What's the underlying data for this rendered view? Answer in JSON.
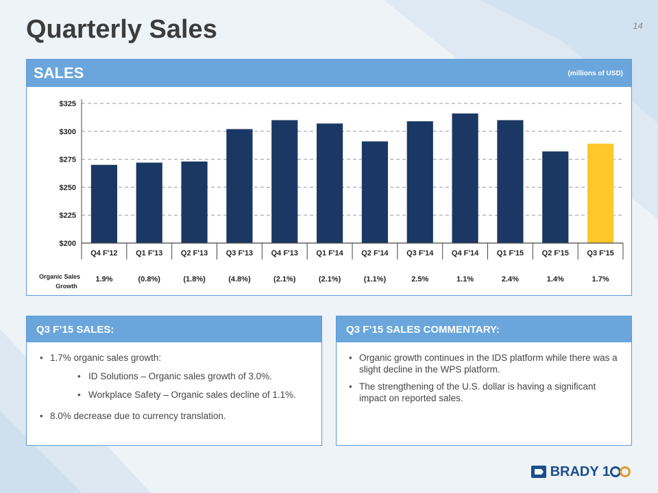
{
  "page": {
    "title": "Quarterly Sales",
    "number": "14"
  },
  "sales_panel": {
    "header": "SALES",
    "unit": "(millions of USD)"
  },
  "chart_data": {
    "type": "bar",
    "categories": [
      "Q4 F'12",
      "Q1 F'13",
      "Q2 F'13",
      "Q3 F'13",
      "Q4 F'13",
      "Q1 F'14",
      "Q2 F'14",
      "Q3 F'14",
      "Q4 F'14",
      "Q1 F'15",
      "Q2 F'15",
      "Q3 F'15"
    ],
    "values": [
      270,
      272,
      273,
      302,
      310,
      307,
      291,
      309,
      316,
      310,
      282,
      289
    ],
    "ylim": [
      200,
      325
    ],
    "yticks": [
      200,
      225,
      250,
      275,
      300,
      325
    ],
    "ytick_labels": [
      "$200",
      "$225",
      "$250",
      "$275",
      "$300",
      "$325"
    ],
    "grid": true,
    "bar_color": "#1b3864",
    "highlight_color": "#ffc72c",
    "highlight_index": 11,
    "growth_label": "Organic Sales Growth",
    "growth_values": [
      "1.9%",
      "(0.8%)",
      "(1.8%)",
      "(4.8%)",
      "(2.1%)",
      "(2.1%)",
      "(1.1%)",
      "2.5%",
      "1.1%",
      "2.4%",
      "1.4%",
      "1.7%"
    ]
  },
  "left_box": {
    "header": "Q3 F’15 SALES:",
    "items": [
      "1.7% organic sales growth:",
      "ID Solutions – Organic sales growth of 3.0%.",
      "Workplace Safety – Organic sales decline of 1.1%.",
      "8.0% decrease due to currency translation."
    ]
  },
  "right_box": {
    "header": "Q3 F’15 SALES COMMENTARY:",
    "items": [
      "Organic growth continues in the IDS platform while there was a slight decline in the WPS platform.",
      "The strengthening of the U.S. dollar is having a significant impact on reported sales."
    ]
  },
  "logo": {
    "name": "brady-logo",
    "text": "BRADY 100"
  },
  "colors": {
    "header_blue": "#6aa6dc",
    "navy": "#1b3864",
    "gold": "#ffc72c"
  }
}
